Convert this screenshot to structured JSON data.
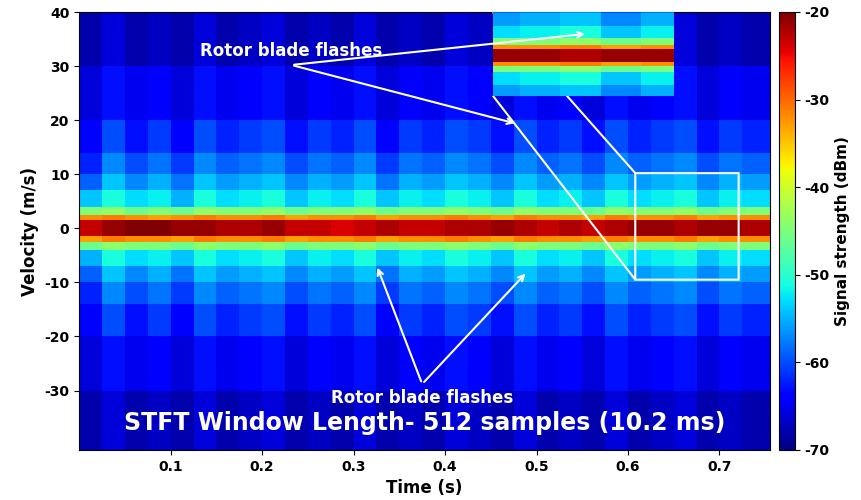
{
  "chart_data": {
    "type": "spectrogram",
    "x_label": "Time (s)",
    "y_label": "Velocity (m/s)",
    "xlim": [
      0,
      0.755
    ],
    "ylim": [
      -41,
      40
    ],
    "xticks": [
      0.1,
      0.2,
      0.3,
      0.4,
      0.5,
      0.6,
      0.7
    ],
    "yticks": [
      -30,
      -20,
      -10,
      0,
      10,
      20,
      30,
      40
    ],
    "time_edges": [
      0,
      0.025,
      0.05,
      0.075,
      0.1,
      0.125,
      0.15,
      0.175,
      0.2,
      0.225,
      0.25,
      0.275,
      0.3,
      0.325,
      0.35,
      0.375,
      0.4,
      0.425,
      0.45,
      0.475,
      0.5,
      0.525,
      0.55,
      0.575,
      0.6,
      0.625,
      0.65,
      0.675,
      0.7,
      0.725,
      0.755
    ],
    "velocity_edges": [
      -41,
      -30,
      -20,
      -14,
      -10,
      -7,
      -4,
      -2.5,
      -1.5,
      1.5,
      2.5,
      4,
      7,
      10,
      14,
      20,
      30,
      40
    ],
    "cells": [
      [
        -68,
        -66,
        -68,
        -67,
        -68,
        -66,
        -68,
        -67,
        -66,
        -68,
        -67,
        -68,
        -66,
        -68,
        -67,
        -68,
        -66,
        -67,
        -68,
        -66,
        -68,
        -67,
        -68,
        -66,
        -68,
        -67,
        -66,
        -68,
        -67,
        -68
      ],
      [
        -66,
        -63,
        -65,
        -64,
        -66,
        -63,
        -65,
        -64,
        -63,
        -66,
        -64,
        -65,
        -63,
        -66,
        -64,
        -65,
        -63,
        -64,
        -66,
        -63,
        -65,
        -64,
        -66,
        -63,
        -65,
        -64,
        -63,
        -66,
        -64,
        -65
      ],
      [
        -64,
        -60,
        -63,
        -61,
        -64,
        -60,
        -62,
        -61,
        -60,
        -63,
        -61,
        -62,
        -60,
        -64,
        -61,
        -62,
        -60,
        -61,
        -63,
        -60,
        -62,
        -61,
        -63,
        -60,
        -62,
        -61,
        -60,
        -63,
        -61,
        -62
      ],
      [
        -62,
        -57,
        -60,
        -58,
        -61,
        -57,
        -59,
        -58,
        -57,
        -60,
        -58,
        -59,
        -57,
        -61,
        -58,
        -59,
        -57,
        -58,
        -60,
        -57,
        -59,
        -58,
        -60,
        -57,
        -59,
        -58,
        -57,
        -60,
        -58,
        -59
      ],
      [
        -59,
        -54,
        -57,
        -55,
        -58,
        -54,
        -56,
        -55,
        -54,
        -57,
        -55,
        -56,
        -54,
        -58,
        -55,
        -56,
        -54,
        -55,
        -57,
        -54,
        -56,
        -55,
        -57,
        -54,
        -56,
        -55,
        -54,
        -57,
        -55,
        -56
      ],
      [
        -55,
        -51,
        -53,
        -52,
        -54,
        -51,
        -53,
        -52,
        -51,
        -54,
        -52,
        -53,
        -51,
        -54,
        -52,
        -53,
        -51,
        -52,
        -54,
        -51,
        -53,
        -52,
        -54,
        -51,
        -53,
        -52,
        -51,
        -54,
        -52,
        -53
      ],
      [
        -46,
        -44,
        -45,
        -45,
        -46,
        -44,
        -45,
        -45,
        -44,
        -46,
        -45,
        -45,
        -44,
        -46,
        -45,
        -45,
        -44,
        -45,
        -46,
        -44,
        -45,
        -45,
        -46,
        -44,
        -45,
        -45,
        -44,
        -46,
        -45,
        -45
      ],
      [
        -33,
        -31,
        -32,
        -32,
        -33,
        -31,
        -32,
        -32,
        -31,
        -33,
        -32,
        -32,
        -31,
        -33,
        -32,
        -32,
        -31,
        -32,
        -33,
        -31,
        -32,
        -32,
        -33,
        -31,
        -32,
        -32,
        -31,
        -33,
        -32,
        -32
      ],
      [
        -23,
        -21,
        -20,
        -20,
        -21,
        -21,
        -22,
        -22,
        -21,
        -23,
        -23,
        -24,
        -23,
        -22,
        -23,
        -23,
        -22,
        -22,
        -21,
        -22,
        -23,
        -22,
        -23,
        -22,
        -21,
        -21,
        -22,
        -21,
        -21,
        -22
      ],
      [
        -32,
        -31,
        -32,
        -33,
        -32,
        -31,
        -32,
        -32,
        -31,
        -33,
        -32,
        -32,
        -31,
        -33,
        -32,
        -32,
        -31,
        -32,
        -33,
        -31,
        -32,
        -32,
        -33,
        -31,
        -32,
        -32,
        -31,
        -33,
        -32,
        -32
      ],
      [
        -45,
        -44,
        -46,
        -45,
        -46,
        -44,
        -45,
        -45,
        -44,
        -46,
        -45,
        -45,
        -44,
        -46,
        -45,
        -45,
        -44,
        -45,
        -46,
        -44,
        -45,
        -45,
        -46,
        -44,
        -45,
        -45,
        -44,
        -46,
        -45,
        -45
      ],
      [
        -54,
        -51,
        -53,
        -52,
        -55,
        -51,
        -53,
        -52,
        -51,
        -54,
        -52,
        -53,
        -51,
        -54,
        -52,
        -53,
        -51,
        -52,
        -54,
        -51,
        -53,
        -52,
        -54,
        -51,
        -53,
        -52,
        -51,
        -54,
        -52,
        -53
      ],
      [
        -59,
        -54,
        -57,
        -55,
        -58,
        -54,
        -56,
        -55,
        -54,
        -57,
        -55,
        -56,
        -54,
        -58,
        -55,
        -56,
        -54,
        -55,
        -57,
        -54,
        -56,
        -55,
        -57,
        -54,
        -56,
        -55,
        -54,
        -57,
        -55,
        -56
      ],
      [
        -62,
        -57,
        -60,
        -58,
        -61,
        -57,
        -59,
        -58,
        -57,
        -60,
        -58,
        -59,
        -57,
        -61,
        -58,
        -59,
        -57,
        -58,
        -60,
        -57,
        -59,
        -58,
        -60,
        -57,
        -59,
        -58,
        -57,
        -60,
        -58,
        -59
      ],
      [
        -64,
        -60,
        -63,
        -61,
        -64,
        -60,
        -62,
        -61,
        -60,
        -63,
        -61,
        -62,
        -60,
        -64,
        -61,
        -62,
        -60,
        -61,
        -63,
        -60,
        -62,
        -61,
        -63,
        -60,
        -62,
        -61,
        -60,
        -63,
        -61,
        -62
      ],
      [
        -66,
        -63,
        -65,
        -64,
        -66,
        -63,
        -65,
        -64,
        -63,
        -66,
        -64,
        -65,
        -63,
        -66,
        -64,
        -65,
        -63,
        -64,
        -66,
        -63,
        -65,
        -64,
        -66,
        -63,
        -65,
        -64,
        -63,
        -66,
        -64,
        -65
      ],
      [
        -68,
        -66,
        -68,
        -67,
        -68,
        -66,
        -68,
        -67,
        -66,
        -68,
        -67,
        -68,
        -66,
        -68,
        -67,
        -68,
        -66,
        -67,
        -68,
        -66,
        -68,
        -67,
        -68,
        -66,
        -68,
        -67,
        -66,
        -68,
        -67,
        -68
      ]
    ],
    "colorbar": {
      "label": "Signal strength (dBm)",
      "range": [
        -70,
        -20
      ],
      "ticks": [
        -20,
        -30,
        -40,
        -50,
        -60,
        -70
      ]
    },
    "inset": {
      "xlim": [
        0.608,
        0.721
      ],
      "ylim": [
        -9.5,
        10.2
      ]
    },
    "annotations": [
      {
        "text": "Rotor blade flashes",
        "arrow_to": [
          [
            0.556,
            36
          ],
          [
            0.479,
            19.3
          ]
        ]
      },
      {
        "text": "Rotor blade flashes",
        "arrow_to": [
          [
            0.325,
            -6.8
          ],
          [
            0.49,
            -8
          ]
        ]
      },
      {
        "text": "STFT Window Length- 512 samples (10.2 ms)"
      }
    ]
  }
}
